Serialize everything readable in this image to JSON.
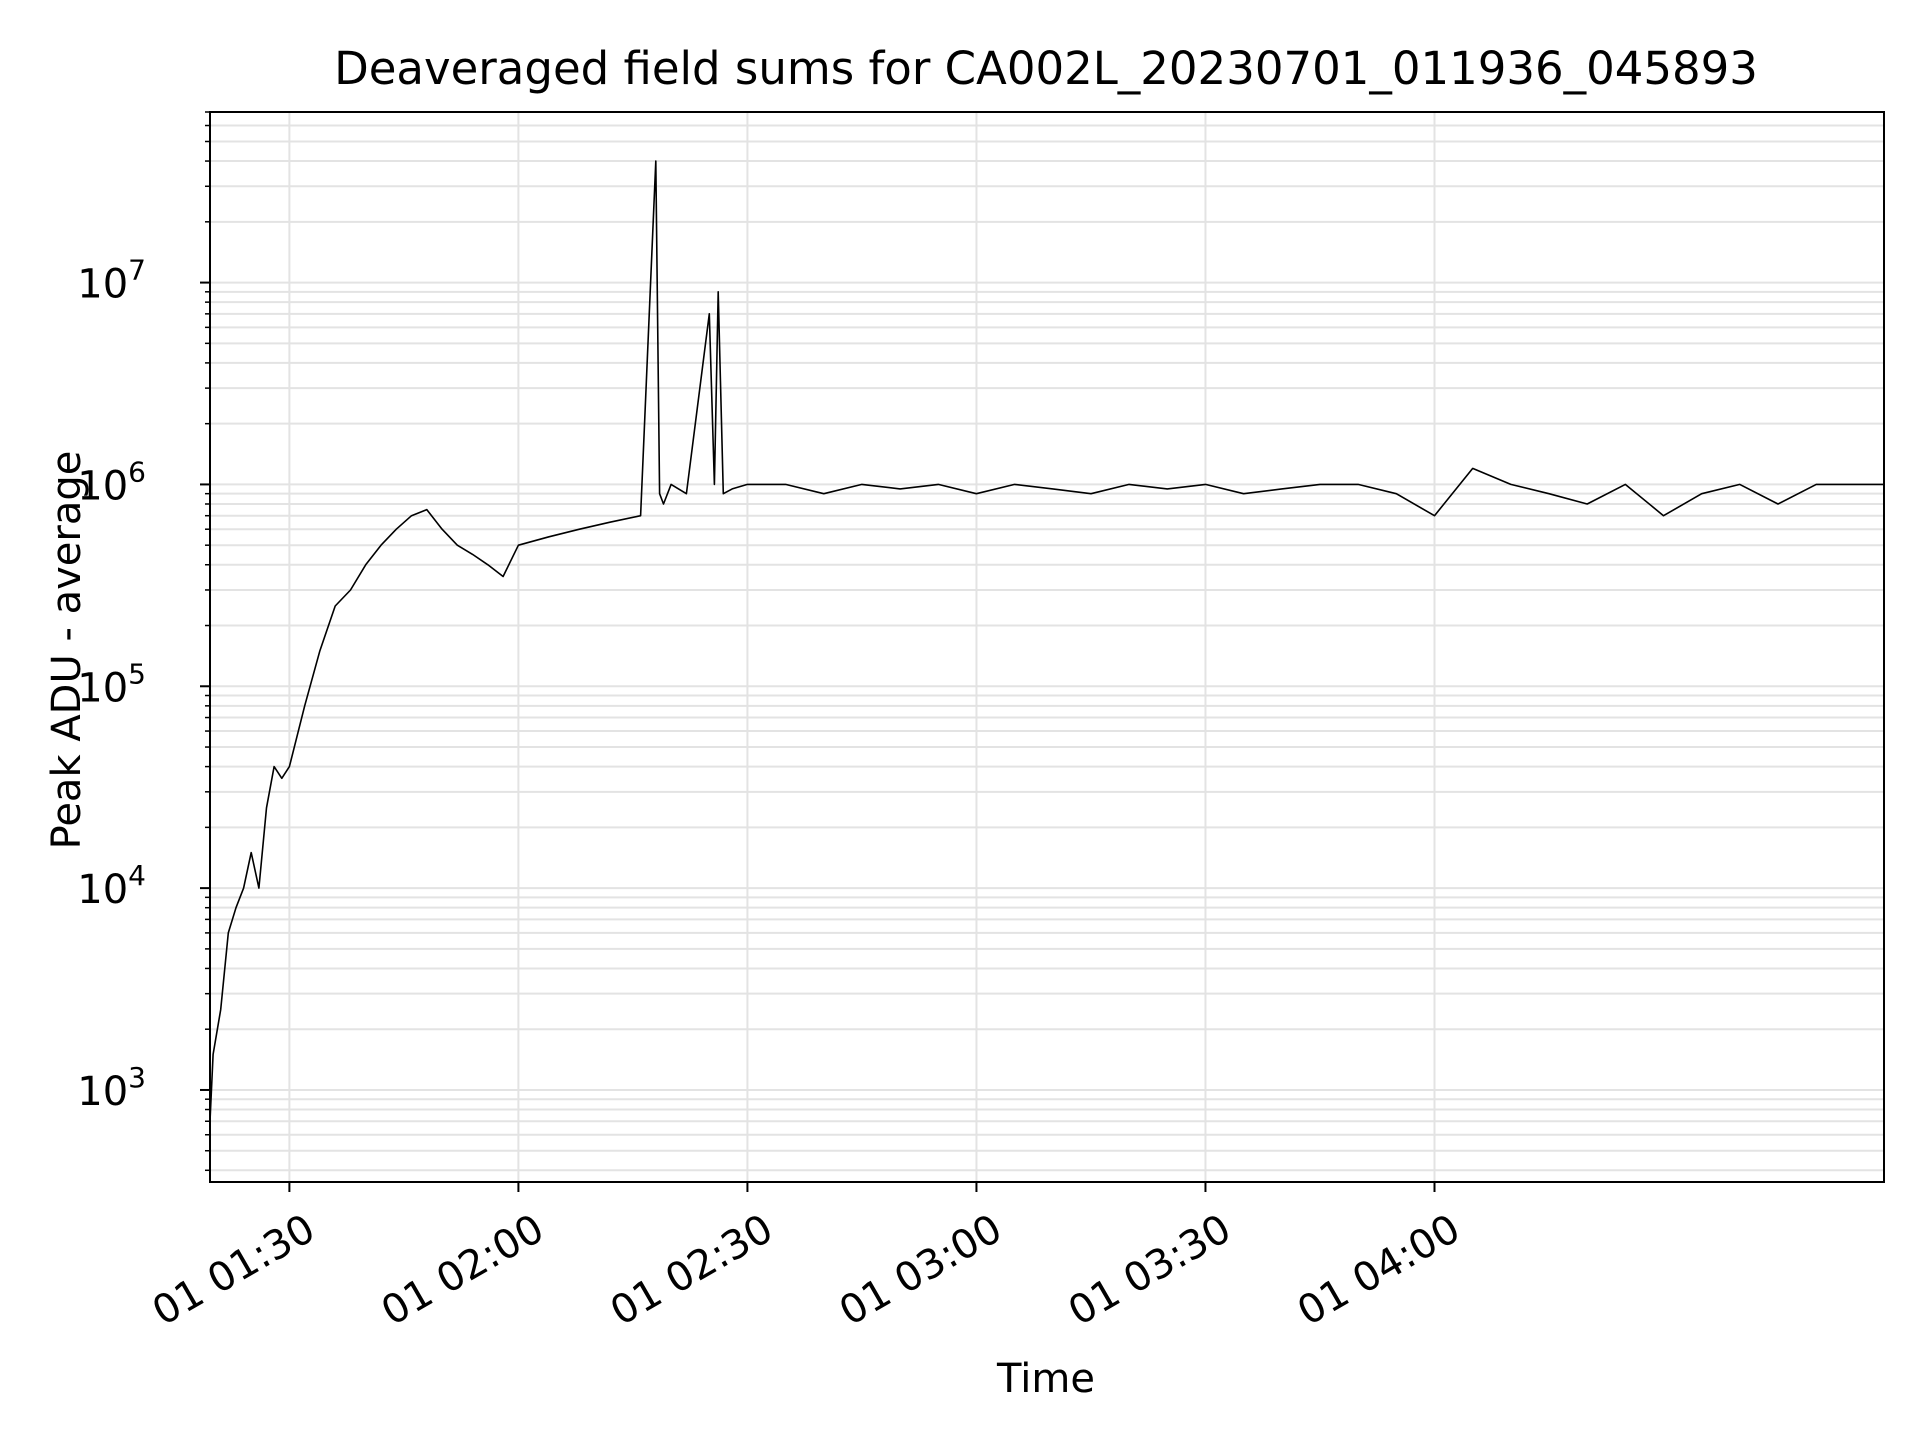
{
  "chart_data": {
    "type": "line",
    "title": "Deaveraged field sums for CA002L_20230701_011936_045893",
    "xlabel": "Time",
    "ylabel": "Peak ADU - average",
    "yscale": "log",
    "ylim": [
      350,
      70000000
    ],
    "xlim": [
      "01:19:36",
      "04:58:53"
    ],
    "grid": true,
    "x_ticks": [
      {
        "time": "01:30",
        "label": "01 01:30"
      },
      {
        "time": "02:00",
        "label": "01 02:00"
      },
      {
        "time": "02:30",
        "label": "01 02:30"
      },
      {
        "time": "03:00",
        "label": "01 03:00"
      },
      {
        "time": "03:30",
        "label": "01 03:30"
      },
      {
        "time": "04:00",
        "label": "01 04:00"
      }
    ],
    "y_ticks": [
      {
        "value": 1000,
        "base": "10",
        "exp": "3"
      },
      {
        "value": 10000,
        "base": "10",
        "exp": "4"
      },
      {
        "value": 100000,
        "base": "10",
        "exp": "5"
      },
      {
        "value": 1000000,
        "base": "10",
        "exp": "6"
      },
      {
        "value": 10000000,
        "base": "10",
        "exp": "7"
      }
    ],
    "line_color": "#000000",
    "series": [
      {
        "x": [
          "01:19:36",
          "01:20:00",
          "01:21:00",
          "01:22:00",
          "01:23:00",
          "01:24:00",
          "01:25:00",
          "01:26:00",
          "01:27:00",
          "01:28:00",
          "01:29:00",
          "01:30:00",
          "01:32:00",
          "01:34:00",
          "01:36:00",
          "01:38:00",
          "01:40:00",
          "01:42:00",
          "01:44:00",
          "01:46:00",
          "01:48:00",
          "01:50:00",
          "01:52:00",
          "01:54:00",
          "01:56:00",
          "01:58:00",
          "02:00:00",
          "02:04:00",
          "02:08:00",
          "02:12:00",
          "02:16:00",
          "02:18:00",
          "02:18:30",
          "02:19:00",
          "02:20:00",
          "02:22:00",
          "02:25:00",
          "02:25:40",
          "02:26:10",
          "02:26:50",
          "02:28:00",
          "02:30:00",
          "02:35:00",
          "02:40:00",
          "02:45:00",
          "02:50:00",
          "02:55:00",
          "03:00:00",
          "03:05:00",
          "03:10:00",
          "03:15:00",
          "03:20:00",
          "03:25:00",
          "03:30:00",
          "03:35:00",
          "03:40:00",
          "03:45:00",
          "03:50:00",
          "03:55:00",
          "04:00:00",
          "04:05:00",
          "04:10:00",
          "04:15:00",
          "04:20:00",
          "04:25:00",
          "04:30:00",
          "04:35:00",
          "04:40:00",
          "04:45:00",
          "04:50:00",
          "04:55:00",
          "04:58:53"
        ],
        "y": [
          700,
          1500,
          2500,
          6000,
          8000,
          10000,
          15000,
          10000,
          25000,
          40000,
          35000,
          40000,
          80000,
          150000,
          250000,
          300000,
          400000,
          500000,
          600000,
          700000,
          750000,
          600000,
          500000,
          450000,
          400000,
          350000,
          500000,
          550000,
          600000,
          650000,
          700000,
          40000000,
          900000,
          800000,
          1000000,
          900000,
          7000000,
          1000000,
          9000000,
          900000,
          950000,
          1000000,
          1000000,
          900000,
          1000000,
          950000,
          1000000,
          900000,
          1000000,
          950000,
          900000,
          1000000,
          950000,
          1000000,
          900000,
          950000,
          1000000,
          1000000,
          900000,
          700000,
          1200000,
          1000000,
          900000,
          800000,
          1000000,
          700000,
          900000,
          1000000,
          800000,
          1000000,
          1000000,
          1000000
        ]
      }
    ]
  }
}
